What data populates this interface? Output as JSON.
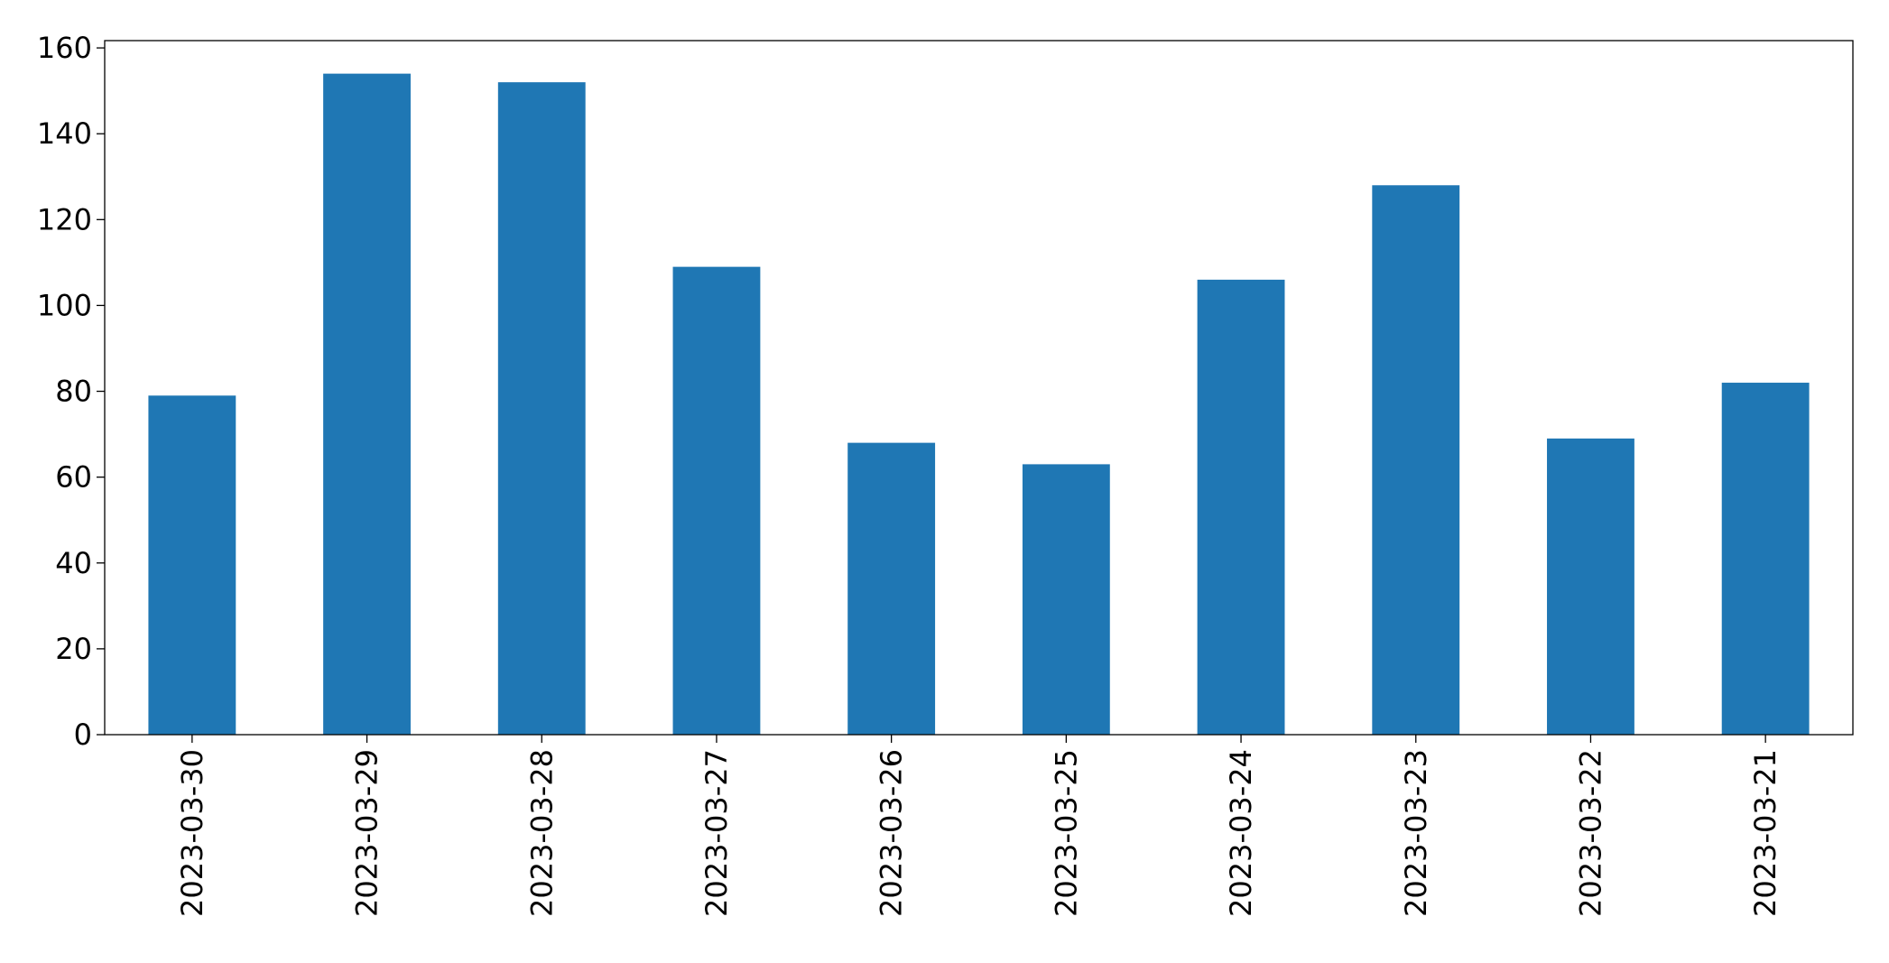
{
  "chart_data": {
    "type": "bar",
    "categories": [
      "2023-03-30",
      "2023-03-29",
      "2023-03-28",
      "2023-03-27",
      "2023-03-26",
      "2023-03-25",
      "2023-03-24",
      "2023-03-23",
      "2023-03-22",
      "2023-03-21"
    ],
    "values": [
      79,
      154,
      152,
      109,
      68,
      63,
      106,
      128,
      69,
      82
    ],
    "color": "#1f77b4",
    "ylim": [
      0,
      161.7
    ],
    "yticks": [
      0,
      20,
      40,
      60,
      80,
      100,
      120,
      140,
      160
    ],
    "grid": false
  }
}
